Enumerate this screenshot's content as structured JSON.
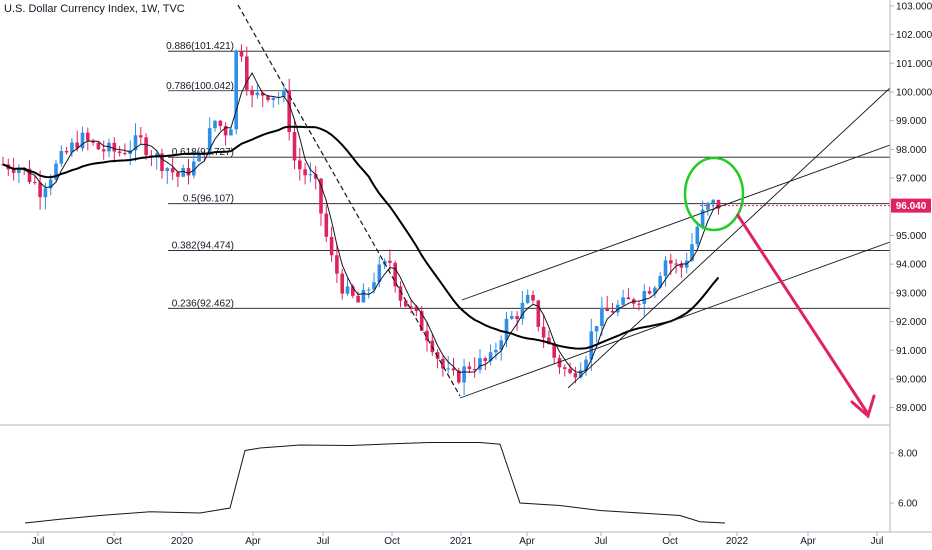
{
  "chart_data": {
    "type": "candlestick",
    "title": "U.S. Dollar Currency Index, 1W, TVC",
    "x_labels": [
      "Jul",
      "Oct",
      "2020",
      "Apr",
      "Jul",
      "Oct",
      "2021",
      "Apr",
      "Jul",
      "Oct",
      "2022",
      "Apr",
      "Jul"
    ],
    "y_labels": [
      "103.000",
      "102.000",
      "101.000",
      "100.000",
      "99.000",
      "98.000",
      "97.000",
      "96.000",
      "95.000",
      "94.000",
      "93.000",
      "92.000",
      "91.000",
      "90.000",
      "89.000"
    ],
    "ylim": [
      88.5,
      103.1
    ],
    "current_price": "96.040",
    "fib_levels": [
      {
        "label": "0.886(101.421)",
        "value": 101.421
      },
      {
        "label": "0.786(100.042)",
        "value": 100.042
      },
      {
        "label": "0.618(97.727)",
        "value": 97.727
      },
      {
        "label": "0.5(96.107)",
        "value": 96.107
      },
      {
        "label": "0.382(94.474)",
        "value": 94.474
      },
      {
        "label": "0.236(92.462)",
        "value": 92.462
      }
    ],
    "indicator": {
      "y_labels": [
        "8.00",
        "6.00"
      ]
    },
    "colors": {
      "up": "#2f8fe6",
      "down": "#e0235f",
      "arrow": "#e0235f",
      "circle": "#22cc22",
      "ma": "#000000"
    }
  }
}
